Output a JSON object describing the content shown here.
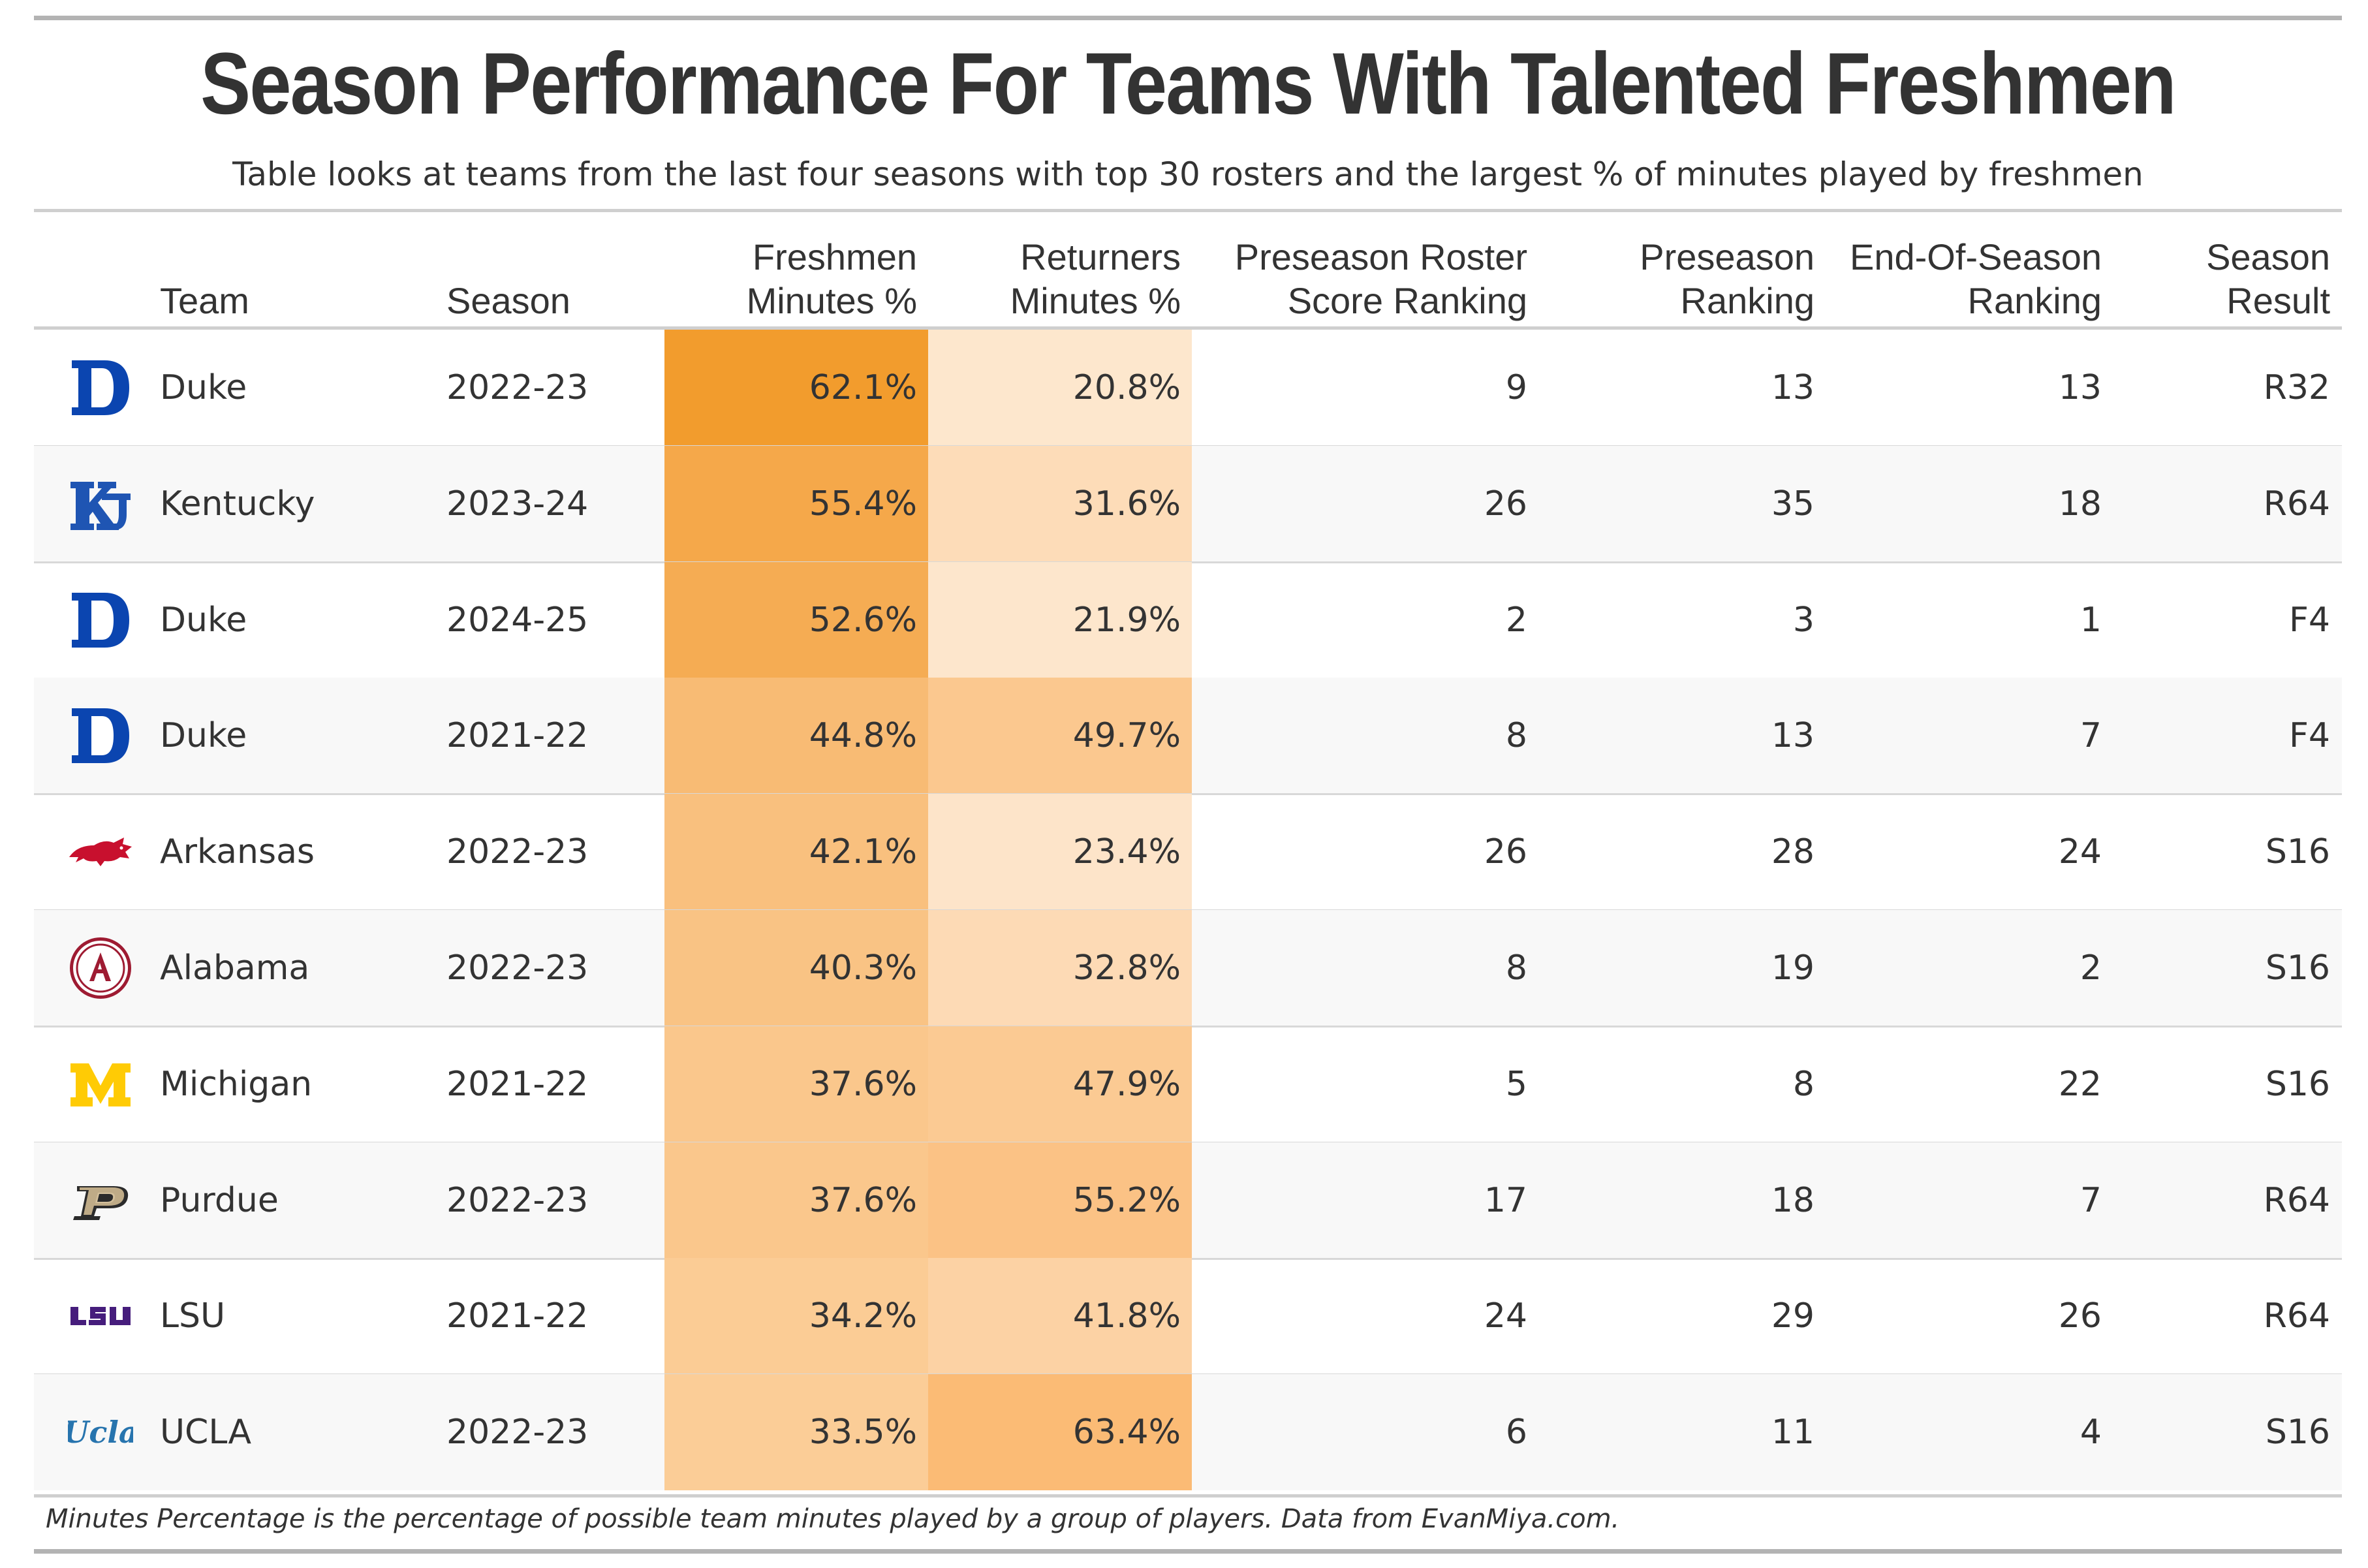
{
  "title": "Season Performance For Teams With Talented Freshmen",
  "subtitle": "Table looks at teams from the last four seasons with top 30 rosters and the largest % of minutes played by freshmen",
  "columns": {
    "team": "Team",
    "season": "Season",
    "freshmen_line1": "Freshmen",
    "freshmen_line2": "Minutes %",
    "returners_line1": "Returners",
    "returners_line2": "Minutes %",
    "roster_line1": "Preseason Roster",
    "roster_line2": "Score Ranking",
    "preseason_line1": "Preseason",
    "preseason_line2": "Ranking",
    "eos_line1": "End-Of-Season",
    "eos_line2": "Ranking",
    "result_line1": "Season",
    "result_line2": "Result"
  },
  "rows": [
    {
      "team": "Duke",
      "logo": "duke-logo",
      "season": "2022-23",
      "freshmen": "62.1%",
      "returners": "20.8%",
      "roster_rank": "9",
      "preseason_rank": "13",
      "eos_rank": "13",
      "result": "R32",
      "freshmen_color": "#f29c2d",
      "returners_color": "#fde7cd"
    },
    {
      "team": "Kentucky",
      "logo": "kentucky-logo",
      "season": "2023-24",
      "freshmen": "55.4%",
      "returners": "31.6%",
      "roster_rank": "26",
      "preseason_rank": "35",
      "eos_rank": "18",
      "result": "R64",
      "freshmen_color": "#f5a84a",
      "returners_color": "#fddcb8"
    },
    {
      "team": "Duke",
      "logo": "duke-logo",
      "season": "2024-25",
      "freshmen": "52.6%",
      "returners": "21.9%",
      "roster_rank": "2",
      "preseason_rank": "3",
      "eos_rank": "1",
      "result": "F4",
      "freshmen_color": "#f5ac53",
      "returners_color": "#fde6cc"
    },
    {
      "team": "Duke",
      "logo": "duke-logo",
      "season": "2021-22",
      "freshmen": "44.8%",
      "returners": "49.7%",
      "roster_rank": "8",
      "preseason_rank": "13",
      "eos_rank": "7",
      "result": "F4",
      "freshmen_color": "#f8bb74",
      "returners_color": "#fbc88f"
    },
    {
      "team": "Arkansas",
      "logo": "arkansas-logo",
      "season": "2022-23",
      "freshmen": "42.1%",
      "returners": "23.4%",
      "roster_rank": "26",
      "preseason_rank": "28",
      "eos_rank": "24",
      "result": "S16",
      "freshmen_color": "#f9c07e",
      "returners_color": "#fde4c9"
    },
    {
      "team": "Alabama",
      "logo": "alabama-logo",
      "season": "2022-23",
      "freshmen": "40.3%",
      "returners": "32.8%",
      "roster_rank": "8",
      "preseason_rank": "19",
      "eos_rank": "2",
      "result": "S16",
      "freshmen_color": "#f9c384",
      "returners_color": "#fddab5"
    },
    {
      "team": "Michigan",
      "logo": "michigan-logo",
      "season": "2021-22",
      "freshmen": "37.6%",
      "returners": "47.9%",
      "roster_rank": "5",
      "preseason_rank": "8",
      "eos_rank": "22",
      "result": "S16",
      "freshmen_color": "#fac78c",
      "returners_color": "#fbca93"
    },
    {
      "team": "Purdue",
      "logo": "purdue-logo",
      "season": "2022-23",
      "freshmen": "37.6%",
      "returners": "55.2%",
      "roster_rank": "17",
      "preseason_rank": "18",
      "eos_rank": "7",
      "result": "R64",
      "freshmen_color": "#fac78c",
      "returners_color": "#fbc285"
    },
    {
      "team": "LSU",
      "logo": "lsu-logo",
      "season": "2021-22",
      "freshmen": "34.2%",
      "returners": "41.8%",
      "roster_rank": "24",
      "preseason_rank": "29",
      "eos_rank": "26",
      "result": "R64",
      "freshmen_color": "#fbcc95",
      "returners_color": "#fcd2a4"
    },
    {
      "team": "UCLA",
      "logo": "ucla-logo",
      "season": "2022-23",
      "freshmen": "33.5%",
      "returners": "63.4%",
      "roster_rank": "6",
      "preseason_rank": "11",
      "eos_rank": "4",
      "result": "S16",
      "freshmen_color": "#fbcd97",
      "returners_color": "#fbbb75"
    }
  ],
  "footnote": "Minutes Percentage is the percentage of possible team minutes played by a group of players. Data from EvanMiya.com."
}
